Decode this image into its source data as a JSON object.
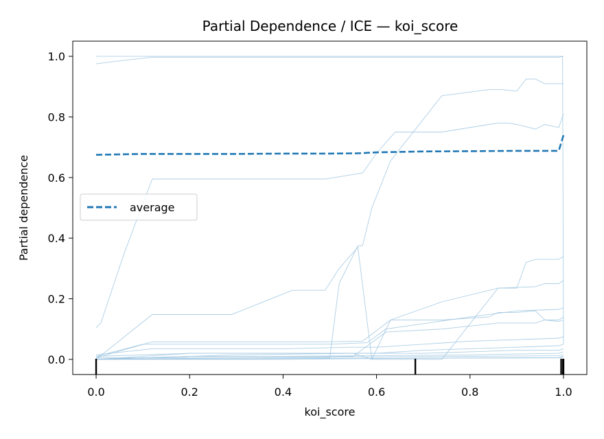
{
  "chart_data": {
    "type": "line",
    "title": "Partial Dependence / ICE — koi_score",
    "xlabel": "koi_score",
    "ylabel": "Partial dependence",
    "xlim": [
      -0.05,
      1.05
    ],
    "ylim": [
      -0.05,
      1.05
    ],
    "xticks": [
      0.0,
      0.2,
      0.4,
      0.6,
      0.8,
      1.0
    ],
    "xtick_labels": [
      "0.0",
      "0.2",
      "0.4",
      "0.6",
      "0.8",
      "1.0"
    ],
    "yticks": [
      0.0,
      0.2,
      0.4,
      0.6,
      0.8,
      1.0
    ],
    "ytick_labels": [
      "0.0",
      "0.2",
      "0.4",
      "0.6",
      "0.8",
      "1.0"
    ],
    "grid": false,
    "legend_position": "center-left",
    "colors": {
      "ice": "#9ec5e0",
      "average": "#1f77b4",
      "rug": "#000000",
      "frame": "#000000"
    },
    "series": [
      {
        "name": "average",
        "style": "dashed",
        "x": [
          0.0,
          0.1,
          0.2,
          0.3,
          0.4,
          0.5,
          0.56,
          0.6,
          0.7,
          0.8,
          0.9,
          0.99,
          1.0
        ],
        "y": [
          0.675,
          0.678,
          0.678,
          0.678,
          0.679,
          0.679,
          0.68,
          0.683,
          0.686,
          0.687,
          0.688,
          0.688,
          0.74
        ]
      }
    ],
    "ice_curves": [
      {
        "x": [
          0.0,
          0.1,
          0.998,
          1.0
        ],
        "y": [
          1.0,
          1.0,
          1.0,
          0.05
        ]
      },
      {
        "x": [
          0.0,
          0.05,
          0.12,
          0.99,
          1.0
        ],
        "y": [
          0.975,
          0.985,
          0.997,
          0.997,
          1.0
        ]
      },
      {
        "x": [
          0.0,
          0.01,
          0.06,
          0.12,
          0.49,
          0.57,
          0.6,
          0.64,
          0.74,
          0.84,
          0.86,
          0.88,
          0.9,
          0.94,
          0.96,
          0.99,
          1.0
        ],
        "y": [
          0.105,
          0.12,
          0.35,
          0.595,
          0.595,
          0.615,
          0.68,
          0.75,
          0.75,
          0.775,
          0.78,
          0.78,
          0.775,
          0.76,
          0.775,
          0.765,
          0.81
        ]
      },
      {
        "x": [
          0.0,
          0.1,
          0.2,
          0.3,
          0.4,
          0.5,
          0.52,
          0.56,
          0.57,
          0.59,
          0.63,
          0.74,
          0.84,
          0.87,
          0.9,
          0.92,
          0.94,
          0.96,
          0.99,
          1.0
        ],
        "y": [
          0.005,
          0.005,
          0.005,
          0.005,
          0.005,
          0.005,
          0.25,
          0.375,
          0.375,
          0.5,
          0.655,
          0.87,
          0.89,
          0.89,
          0.885,
          0.925,
          0.925,
          0.91,
          0.91,
          0.91
        ]
      },
      {
        "x": [
          0.0,
          0.12,
          0.29,
          0.42,
          0.49,
          0.52,
          0.56,
          0.59,
          0.63,
          0.74,
          0.86,
          0.88,
          0.9,
          0.92,
          0.94,
          0.96,
          0.99,
          1.0
        ],
        "y": [
          0.0,
          0.148,
          0.148,
          0.228,
          0.228,
          0.3,
          0.37,
          0.0,
          0.0,
          0.0,
          0.235,
          0.235,
          0.235,
          0.32,
          0.33,
          0.33,
          0.33,
          0.34
        ]
      },
      {
        "x": [
          0.0,
          0.12,
          0.49,
          0.57,
          0.63,
          0.74,
          0.86,
          0.94,
          0.96,
          0.99,
          1.0
        ],
        "y": [
          0.005,
          0.058,
          0.058,
          0.06,
          0.13,
          0.19,
          0.235,
          0.24,
          0.25,
          0.25,
          0.26
        ]
      },
      {
        "x": [
          0.0,
          0.1,
          0.5,
          0.58,
          0.62,
          0.8,
          0.9,
          0.99,
          1.0
        ],
        "y": [
          0.01,
          0.05,
          0.05,
          0.055,
          0.1,
          0.14,
          0.16,
          0.165,
          0.17
        ]
      },
      {
        "x": [
          0.0,
          0.2,
          0.4,
          0.55,
          0.59,
          0.63,
          0.74,
          0.84,
          0.86,
          0.9,
          0.94,
          0.96,
          0.99,
          1.0
        ],
        "y": [
          0.01,
          0.02,
          0.02,
          0.02,
          0.0,
          0.13,
          0.13,
          0.14,
          0.155,
          0.155,
          0.16,
          0.13,
          0.125,
          0.13
        ]
      },
      {
        "x": [
          0.0,
          0.2,
          0.4,
          0.55,
          0.62,
          0.74,
          0.86,
          0.94,
          0.96,
          0.99,
          1.0
        ],
        "y": [
          0.0,
          0.01,
          0.01,
          0.01,
          0.09,
          0.1,
          0.12,
          0.12,
          0.13,
          0.13,
          0.14
        ]
      },
      {
        "x": [
          0.0,
          0.12,
          0.4,
          0.55,
          0.6,
          0.7,
          0.8,
          0.9,
          0.99,
          1.0
        ],
        "y": [
          0.015,
          0.035,
          0.035,
          0.04,
          0.04,
          0.05,
          0.06,
          0.065,
          0.07,
          0.075
        ]
      },
      {
        "x": [
          0.0,
          0.2,
          0.5,
          0.6,
          0.7,
          0.8,
          0.9,
          0.99,
          1.0
        ],
        "y": [
          0.0,
          0.02,
          0.02,
          0.02,
          0.03,
          0.035,
          0.04,
          0.045,
          0.05
        ]
      },
      {
        "x": [
          0.0,
          0.3,
          0.55,
          0.6,
          0.7,
          0.8,
          0.9,
          0.99,
          1.0
        ],
        "y": [
          0.0,
          0.015,
          0.02,
          0.02,
          0.02,
          0.025,
          0.03,
          0.03,
          0.035
        ]
      },
      {
        "x": [
          0.0,
          0.2,
          0.4,
          0.6,
          0.8,
          0.99,
          1.0
        ],
        "y": [
          0.0,
          0.01,
          0.01,
          0.012,
          0.015,
          0.02,
          0.025
        ]
      },
      {
        "x": [
          0.0,
          0.3,
          0.6,
          0.8,
          0.99,
          1.0
        ],
        "y": [
          0.0,
          0.005,
          0.008,
          0.01,
          0.012,
          0.015
        ]
      },
      {
        "x": [
          0.0,
          0.5,
          0.99,
          1.0
        ],
        "y": [
          0.0,
          0.003,
          0.005,
          0.008
        ]
      },
      {
        "x": [
          0.0,
          0.4,
          0.7,
          0.99,
          1.0
        ],
        "y": [
          0.0,
          0.0,
          0.004,
          0.006,
          0.01
        ]
      }
    ],
    "rug_x": [
      0.0,
      0.683,
      0.995,
      0.999,
      1.0
    ]
  }
}
